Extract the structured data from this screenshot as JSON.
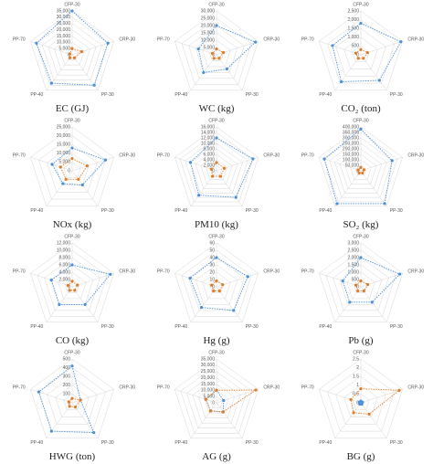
{
  "chart_data": [
    {
      "type": "radar",
      "title": "EC (GJ)",
      "axes": [
        "CFP-30",
        "CRP-30",
        "PP-30",
        "PP-40",
        "PP-70"
      ],
      "series": [
        {
          "color": "#4a90d9",
          "values": [
            35000,
            30000,
            30000,
            28000,
            30000
          ]
        },
        {
          "color": "#e07b28",
          "values": [
            5000,
            8000,
            3000,
            3000,
            2000
          ]
        }
      ],
      "ylim": [
        0,
        35000
      ],
      "yticks": [
        0,
        {
          "value": 5000,
          "label": "5,000"
        },
        {
          "value": 10000,
          "label": "10,000"
        },
        {
          "value": 15000,
          "label": "15,000"
        },
        {
          "value": 20000,
          "label": "20,000"
        },
        {
          "value": 25000,
          "label": "25,000"
        },
        {
          "value": 30000,
          "label": "30,000"
        },
        {
          "value": 35000,
          "label": "35,000"
        }
      ]
    },
    {
      "type": "radar",
      "title": "WC (kg)",
      "axes": [
        "CFP-30",
        "CRP-30",
        "PP-30",
        "PP-40",
        "PP-70"
      ],
      "series": [
        {
          "color": "#4a90d9",
          "values": [
            20000,
            28000,
            12000,
            15000,
            13000
          ]
        },
        {
          "color": "#e07b28",
          "values": [
            4000,
            5000,
            3000,
            3000,
            3000
          ]
        }
      ],
      "ylim": [
        0,
        30000
      ],
      "yticks": [
        0,
        {
          "value": 5000,
          "label": "5,000"
        },
        {
          "value": 10000,
          "label": "10,000"
        },
        {
          "value": 15000,
          "label": "15,000"
        },
        {
          "value": 20000,
          "label": "20,000"
        },
        {
          "value": 25000,
          "label": "25,000"
        },
        {
          "value": 30000,
          "label": "30,000"
        }
      ]
    },
    {
      "type": "radar",
      "title": "CO₂ (ton)",
      "axes": [
        "CFP-30",
        "CRP-30",
        "PP-30",
        "PP-40",
        "PP-70"
      ],
      "series": [
        {
          "color": "#4a90d9",
          "values": [
            1800,
            2400,
            1800,
            1900,
            1700
          ]
        },
        {
          "color": "#e07b28",
          "values": [
            300,
            400,
            250,
            250,
            300
          ]
        }
      ],
      "ylim": [
        0,
        2500
      ],
      "yticks": [
        0,
        500,
        {
          "value": 1000,
          "label": "1,000"
        },
        {
          "value": 1500,
          "label": "1,500"
        },
        {
          "value": 2000,
          "label": "2,000"
        },
        {
          "value": 2500,
          "label": "2,500"
        }
      ]
    },
    {
      "type": "radar",
      "title": "NOx (kg)",
      "axes": [
        "CFP-30",
        "CRP-30",
        "PP-30",
        "PP-40",
        "PP-70"
      ],
      "series": [
        {
          "color": "#4a90d9",
          "values": [
            13000,
            20000,
            10000,
            9000,
            12000
          ]
        },
        {
          "color": "#e07b28",
          "values": [
            7000,
            9000,
            6000,
            6000,
            7000
          ]
        }
      ],
      "ylim": [
        0,
        25000
      ],
      "yticks": [
        0,
        {
          "value": 5000,
          "label": "5,000"
        },
        {
          "value": 10000,
          "label": "10,000"
        },
        {
          "value": 15000,
          "label": "15,000"
        },
        {
          "value": 20000,
          "label": "20,000"
        },
        {
          "value": 25000,
          "label": "25,000"
        }
      ]
    },
    {
      "type": "radar",
      "title": "PM10 (kg)",
      "axes": [
        "CFP-30",
        "CRP-30",
        "PP-30",
        "PP-40",
        "PP-70"
      ],
      "series": [
        {
          "color": "#4a90d9",
          "values": [
            12000,
            14000,
            12000,
            11000,
            10000
          ]
        },
        {
          "color": "#e07b28",
          "values": [
            3000,
            3000,
            2500,
            2500,
            2000
          ]
        }
      ],
      "ylim": [
        0,
        16000
      ],
      "yticks": [
        0,
        {
          "value": 2000,
          "label": "2,000"
        },
        {
          "value": 4000,
          "label": "4,000"
        },
        {
          "value": 6000,
          "label": "6,000"
        },
        {
          "value": 8000,
          "label": "8,000"
        },
        {
          "value": 10000,
          "label": "10,000"
        },
        {
          "value": 12000,
          "label": "12,000"
        },
        {
          "value": 14000,
          "label": "14,000"
        },
        {
          "value": 16000,
          "label": "16,000"
        }
      ]
    },
    {
      "type": "radar",
      "title": "SO₂ (kg)",
      "axes": [
        "CFP-30",
        "CRP-30",
        "PP-30",
        "PP-40",
        "PP-70"
      ],
      "series": [
        {
          "color": "#4a90d9",
          "values": [
            380000,
            300000,
            370000,
            370000,
            350000
          ]
        },
        {
          "color": "#e07b28",
          "values": [
            30000,
            30000,
            25000,
            25000,
            25000
          ]
        }
      ],
      "ylim": [
        0,
        400000
      ],
      "yticks": [
        0,
        {
          "value": 50000,
          "label": "50,000"
        },
        {
          "value": 100000,
          "label": "100,000"
        },
        {
          "value": 150000,
          "label": "150,000"
        },
        {
          "value": 200000,
          "label": "200,000"
        },
        {
          "value": 250000,
          "label": "250,000"
        },
        {
          "value": 300000,
          "label": "300,000"
        },
        {
          "value": 350000,
          "label": "350,000"
        },
        {
          "value": 400000,
          "label": "400,000"
        }
      ]
    },
    {
      "type": "radar",
      "title": "CO (kg)",
      "axes": [
        "CFP-30",
        "CRP-30",
        "PP-30",
        "PP-40",
        "PP-70"
      ],
      "series": [
        {
          "color": "#4a90d9",
          "values": [
            6000,
            11000,
            6000,
            6000,
            6000
          ]
        },
        {
          "color": "#e07b28",
          "values": [
            1500,
            1500,
            1200,
            1200,
            1200
          ]
        }
      ],
      "ylim": [
        0,
        12000
      ],
      "yticks": [
        0,
        {
          "value": 2000,
          "label": "2,000"
        },
        {
          "value": 4000,
          "label": "4,000"
        },
        {
          "value": 6000,
          "label": "6,000"
        },
        {
          "value": 8000,
          "label": "8,000"
        },
        {
          "value": 10000,
          "label": "10,000"
        },
        {
          "value": 12000,
          "label": "12,000"
        }
      ]
    },
    {
      "type": "radar",
      "title": "Hg (g)",
      "axes": [
        "CFP-30",
        "CRP-30",
        "PP-30",
        "PP-40",
        "PP-70"
      ],
      "series": [
        {
          "color": "#4a90d9",
          "values": [
            40,
            45,
            40,
            35,
            38
          ]
        },
        {
          "color": "#e07b28",
          "values": [
            8,
            9,
            7,
            7,
            7
          ]
        }
      ],
      "ylim": [
        0,
        60
      ],
      "yticks": [
        0,
        10,
        20,
        30,
        40,
        50,
        60
      ]
    },
    {
      "type": "radar",
      "title": "Pb (g)",
      "axes": [
        "CFP-30",
        "CRP-30",
        "PP-30",
        "PP-40",
        "PP-70"
      ],
      "series": [
        {
          "color": "#4a90d9",
          "values": [
            2000,
            2800,
            1300,
            1300,
            1300
          ]
        },
        {
          "color": "#e07b28",
          "values": [
            400,
            500,
            350,
            350,
            350
          ]
        }
      ],
      "ylim": [
        0,
        3000
      ],
      "yticks": [
        0,
        500,
        {
          "value": 1000,
          "label": "1,000"
        },
        {
          "value": 1500,
          "label": "1,500"
        },
        {
          "value": 2000,
          "label": "2,000"
        },
        {
          "value": 2500,
          "label": "2,500"
        },
        {
          "value": 3000,
          "label": "3,000"
        }
      ]
    },
    {
      "type": "radar",
      "title": "HWG (ton)",
      "axes": [
        "CFP-30",
        "CRP-30",
        "PP-30",
        "PP-40",
        "PP-70"
      ],
      "series": [
        {
          "color": "#4a90d9",
          "values": [
            420,
            100,
            420,
            400,
            400
          ]
        },
        {
          "color": "#e07b28",
          "values": [
            50,
            100,
            60,
            50,
            40
          ]
        }
      ],
      "ylim": [
        0,
        500
      ],
      "yticks": [
        0,
        100,
        200,
        300,
        400,
        500
      ]
    },
    {
      "type": "radar",
      "title": "AG (g)",
      "axes": [
        "CFP-30",
        "CRP-30",
        "PP-30",
        "PP-40",
        "PP-70"
      ],
      "series": [
        {
          "color": "#4a90d9",
          "values": [
            10000,
            6000,
            9000,
            8000,
            9000
          ]
        },
        {
          "color": "#e07b28",
          "values": [
            10000,
            33000,
            9000,
            8000,
            9000
          ]
        }
      ],
      "ylim": [
        0,
        35000
      ],
      "yticks": [
        0,
        {
          "value": 5000,
          "label": "5,000"
        },
        {
          "value": 10000,
          "label": "10,000"
        },
        {
          "value": 15000,
          "label": "15,000"
        },
        {
          "value": 20000,
          "label": "20,000"
        },
        {
          "value": 25000,
          "label": "25,000"
        },
        {
          "value": 30000,
          "label": "30,000"
        },
        {
          "value": 35000,
          "label": "35,000"
        }
      ]
    },
    {
      "type": "radar",
      "title": "BG (g)",
      "axes": [
        "CFP-30",
        "CRP-30",
        "PP-30",
        "PP-40",
        "PP-70"
      ],
      "series": [
        {
          "color": "#4a90d9",
          "values": [
            0.1,
            0.1,
            0.1,
            0.1,
            0.1
          ]
        },
        {
          "color": "#e07b28",
          "values": [
            0.8,
            2.3,
            0.8,
            0.7,
            0.6
          ]
        }
      ],
      "ylim": [
        0,
        2.5
      ],
      "yticks": [
        0,
        0.5,
        1,
        1.5,
        2,
        2.5
      ]
    }
  ]
}
